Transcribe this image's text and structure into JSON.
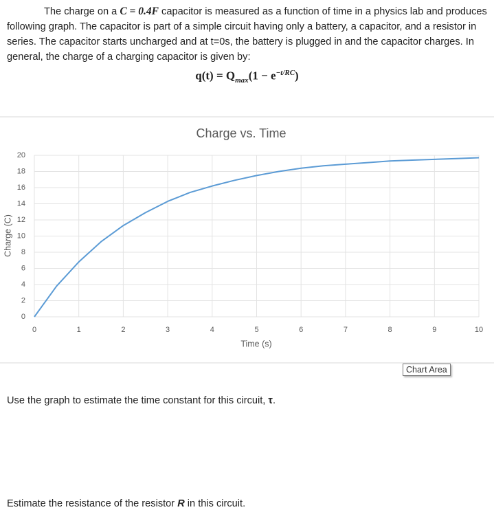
{
  "paragraph": [
    "The charge on a ",
    "C = 0.4F",
    " capacitor is measured as a function of time in a physics lab and produces following graph.  The capacitor is part of a simple circuit having only a battery, a capacitor, and a resistor in series.  The capacitor starts uncharged and at t=0s, the battery is plugged in and the capacitor charges.  In general, the charge of a charging capacitor is given by:"
  ],
  "equation": [
    "q(t) = Q",
    "max",
    "(1 − e",
    "−t/RC",
    ")"
  ],
  "chart_data": {
    "type": "line",
    "title": "Charge vs. Time",
    "xlabel": "Time (s)",
    "ylabel": "Charge (C)",
    "x": [
      0,
      0.5,
      1,
      1.5,
      2,
      2.5,
      3,
      3.5,
      4,
      4.5,
      5,
      5.5,
      6,
      6.5,
      7,
      7.5,
      8,
      8.5,
      9,
      9.5,
      10
    ],
    "values": [
      0,
      3.8,
      6.8,
      9.3,
      11.3,
      12.9,
      14.3,
      15.4,
      16.2,
      16.9,
      17.5,
      18.0,
      18.4,
      18.7,
      18.9,
      19.1,
      19.3,
      19.4,
      19.5,
      19.6,
      19.7
    ],
    "color": "#5b9bd5",
    "xlim": [
      0,
      10
    ],
    "xticks": [
      0,
      1,
      2,
      3,
      4,
      5,
      6,
      7,
      8,
      9,
      10
    ],
    "ylim": [
      0,
      20
    ],
    "yticks": [
      0,
      2,
      4,
      6,
      8,
      10,
      12,
      14,
      16,
      18,
      20
    ],
    "grid": true
  },
  "tooltip": "Chart Area",
  "questions": [
    [
      "Use the graph to estimate the time constant for this circuit, ",
      "τ",
      "."
    ],
    [
      "Estimate the resistance of the resistor ",
      "R",
      " in this circuit."
    ]
  ]
}
